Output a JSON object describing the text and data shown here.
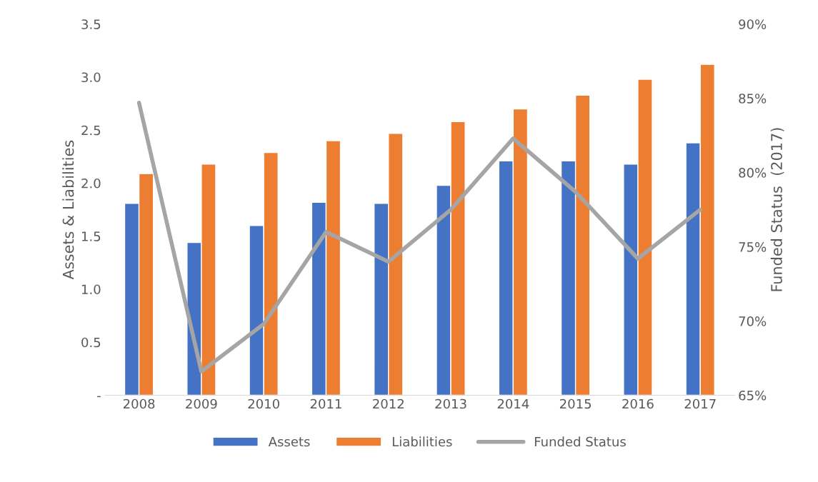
{
  "chart_data": {
    "type": "bar",
    "ylabel": "Assets & Liabilities",
    "y2label": "Funded Status  (2017)",
    "categories": [
      "2008",
      "2009",
      "2010",
      "2011",
      "2012",
      "2013",
      "2014",
      "2015",
      "2016",
      "2017"
    ],
    "series": [
      {
        "name": "Assets",
        "color": "#4472c4",
        "values": [
          1.81,
          1.44,
          1.6,
          1.82,
          1.81,
          1.98,
          2.21,
          2.21,
          2.18,
          2.38
        ]
      },
      {
        "name": "Liabilities",
        "color": "#ed7d31",
        "values": [
          2.09,
          2.18,
          2.29,
          2.4,
          2.47,
          2.58,
          2.7,
          2.83,
          2.98,
          3.12
        ]
      },
      {
        "name": "Funded Status",
        "type": "line",
        "axis": "y2",
        "color": "#a5a5a5",
        "values": [
          84.7,
          66.6,
          69.8,
          76.0,
          74.0,
          77.5,
          82.3,
          78.7,
          74.2,
          77.5
        ]
      }
    ],
    "ylim": [
      0,
      3.5
    ],
    "yticks": [
      {
        "value": 0,
        "label": "-"
      },
      {
        "value": 0.5,
        "label": "0.5"
      },
      {
        "value": 1.0,
        "label": "1.0"
      },
      {
        "value": 1.5,
        "label": "1.5"
      },
      {
        "value": 2.0,
        "label": "2.0"
      },
      {
        "value": 2.5,
        "label": "2.5"
      },
      {
        "value": 3.0,
        "label": "3.0"
      },
      {
        "value": 3.5,
        "label": "3.5"
      }
    ],
    "y2lim": [
      65,
      90
    ],
    "y2ticks": [
      {
        "value": 65,
        "label": "65%"
      },
      {
        "value": 70,
        "label": "70%"
      },
      {
        "value": 75,
        "label": "75%"
      },
      {
        "value": 80,
        "label": "80%"
      },
      {
        "value": 85,
        "label": "85%"
      },
      {
        "value": 90,
        "label": "90%"
      }
    ],
    "grid": false,
    "legend": "bottom",
    "marker": "none",
    "line_style": "solid"
  }
}
